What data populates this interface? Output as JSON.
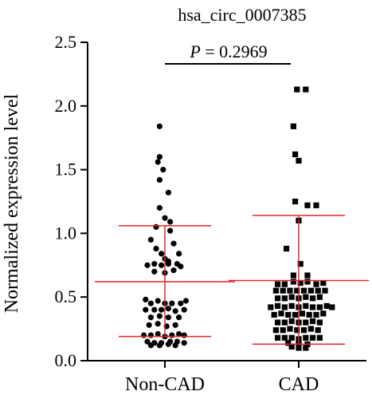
{
  "chart_data": {
    "type": "scatter",
    "title": "hsa_circ_0007385",
    "ylabel": "Normalized expression level",
    "xlabel": "",
    "ylim": [
      0,
      2.5
    ],
    "yticks": [
      "0.0",
      "0.5",
      "1.0",
      "1.5",
      "2.0",
      "2.5"
    ],
    "categories": [
      "Non-CAD",
      "CAD"
    ],
    "annotation": {
      "p_symbol": "P",
      "p_text": " = 0.2969"
    },
    "colors": {
      "points": "#000000",
      "summary_lines": "#e0262b",
      "axis": "#000000"
    },
    "series": [
      {
        "category": "Non-CAD",
        "marker": "circle",
        "mean": 0.62,
        "sd_upper": 1.06,
        "sd_lower": 0.19,
        "points": [
          [
            -0.03,
            1.84
          ],
          [
            -0.03,
            1.6
          ],
          [
            -0.04,
            1.56
          ],
          [
            -0.01,
            1.5
          ],
          [
            -0.03,
            1.42
          ],
          [
            0.02,
            1.32
          ],
          [
            -0.03,
            1.2
          ],
          [
            0.0,
            1.12
          ],
          [
            0.03,
            1.09
          ],
          [
            -0.05,
            1.05
          ],
          [
            0.03,
            1.02
          ],
          [
            -0.08,
            0.95
          ],
          [
            -0.05,
            0.88
          ],
          [
            0.05,
            0.92
          ],
          [
            -0.02,
            0.84
          ],
          [
            0.08,
            0.84
          ],
          [
            0.0,
            0.8
          ],
          [
            0.02,
            0.78
          ],
          [
            -0.1,
            0.75
          ],
          [
            -0.06,
            0.76
          ],
          [
            -0.02,
            0.75
          ],
          [
            0.02,
            0.76
          ],
          [
            0.07,
            0.76
          ],
          [
            0.09,
            0.74
          ],
          [
            -0.06,
            0.7
          ],
          [
            0.0,
            0.69
          ],
          [
            0.05,
            0.71
          ],
          [
            -0.11,
            0.48
          ],
          [
            -0.08,
            0.45
          ],
          [
            -0.04,
            0.47
          ],
          [
            0.0,
            0.45
          ],
          [
            0.04,
            0.45
          ],
          [
            0.09,
            0.45
          ],
          [
            0.12,
            0.47
          ],
          [
            -0.11,
            0.4
          ],
          [
            -0.06,
            0.4
          ],
          [
            -0.02,
            0.4
          ],
          [
            0.02,
            0.41
          ],
          [
            0.06,
            0.39
          ],
          [
            0.11,
            0.4
          ],
          [
            -0.08,
            0.34
          ],
          [
            -0.03,
            0.35
          ],
          [
            0.02,
            0.34
          ],
          [
            0.08,
            0.34
          ],
          [
            -0.09,
            0.28
          ],
          [
            -0.04,
            0.29
          ],
          [
            0.01,
            0.27
          ],
          [
            0.06,
            0.28
          ],
          [
            -0.12,
            0.2
          ],
          [
            -0.08,
            0.2
          ],
          [
            -0.04,
            0.21
          ],
          [
            0.0,
            0.19
          ],
          [
            0.04,
            0.2
          ],
          [
            0.08,
            0.21
          ],
          [
            0.11,
            0.2
          ],
          [
            -0.1,
            0.15
          ],
          [
            -0.06,
            0.14
          ],
          [
            -0.02,
            0.14
          ],
          [
            0.03,
            0.15
          ],
          [
            0.07,
            0.15
          ],
          [
            0.11,
            0.14
          ],
          [
            -0.08,
            0.12
          ],
          [
            -0.03,
            0.12
          ],
          [
            0.02,
            0.13
          ],
          [
            0.06,
            0.12
          ]
        ]
      },
      {
        "category": "CAD",
        "marker": "square",
        "mean": 0.63,
        "sd_upper": 1.14,
        "sd_lower": 0.13,
        "points": [
          [
            -0.01,
            2.13
          ],
          [
            0.04,
            2.13
          ],
          [
            -0.03,
            1.84
          ],
          [
            -0.02,
            1.62
          ],
          [
            0.0,
            1.57
          ],
          [
            -0.02,
            1.25
          ],
          [
            0.05,
            1.22
          ],
          [
            0.1,
            1.22
          ],
          [
            0.0,
            1.1
          ],
          [
            -0.07,
            0.88
          ],
          [
            0.01,
            0.76
          ],
          [
            -0.03,
            0.67
          ],
          [
            0.05,
            0.67
          ],
          [
            -0.12,
            0.6
          ],
          [
            -0.08,
            0.6
          ],
          [
            -0.03,
            0.62
          ],
          [
            0.01,
            0.61
          ],
          [
            0.05,
            0.62
          ],
          [
            0.1,
            0.6
          ],
          [
            0.14,
            0.61
          ],
          [
            -0.13,
            0.55
          ],
          [
            -0.09,
            0.55
          ],
          [
            -0.05,
            0.55
          ],
          [
            -0.01,
            0.55
          ],
          [
            0.03,
            0.55
          ],
          [
            0.07,
            0.55
          ],
          [
            0.11,
            0.55
          ],
          [
            0.15,
            0.55
          ],
          [
            -0.12,
            0.49
          ],
          [
            -0.08,
            0.49
          ],
          [
            -0.04,
            0.5
          ],
          [
            0.0,
            0.49
          ],
          [
            0.04,
            0.5
          ],
          [
            0.08,
            0.49
          ],
          [
            0.12,
            0.5
          ],
          [
            -0.16,
            0.42
          ],
          [
            -0.12,
            0.43
          ],
          [
            -0.08,
            0.42
          ],
          [
            -0.04,
            0.43
          ],
          [
            0.0,
            0.42
          ],
          [
            0.04,
            0.43
          ],
          [
            0.08,
            0.42
          ],
          [
            0.12,
            0.42
          ],
          [
            0.16,
            0.43
          ],
          [
            0.19,
            0.42
          ],
          [
            -0.14,
            0.36
          ],
          [
            -0.1,
            0.37
          ],
          [
            -0.06,
            0.36
          ],
          [
            -0.02,
            0.36
          ],
          [
            0.02,
            0.37
          ],
          [
            0.06,
            0.36
          ],
          [
            0.1,
            0.36
          ],
          [
            0.14,
            0.37
          ],
          [
            -0.12,
            0.3
          ],
          [
            -0.08,
            0.3
          ],
          [
            -0.04,
            0.31
          ],
          [
            0.0,
            0.3
          ],
          [
            0.04,
            0.3
          ],
          [
            0.08,
            0.31
          ],
          [
            0.12,
            0.3
          ],
          [
            -0.13,
            0.24
          ],
          [
            -0.09,
            0.24
          ],
          [
            -0.05,
            0.25
          ],
          [
            -0.01,
            0.24
          ],
          [
            0.03,
            0.24
          ],
          [
            0.07,
            0.25
          ],
          [
            0.11,
            0.24
          ],
          [
            -0.12,
            0.18
          ],
          [
            -0.08,
            0.18
          ],
          [
            -0.04,
            0.18
          ],
          [
            0.0,
            0.17
          ],
          [
            0.04,
            0.18
          ],
          [
            0.08,
            0.18
          ],
          [
            0.12,
            0.18
          ],
          [
            -0.06,
            0.14
          ],
          [
            0.0,
            0.13
          ],
          [
            0.05,
            0.13
          ],
          [
            -0.04,
            0.11
          ],
          [
            0.0,
            0.1
          ],
          [
            0.04,
            0.1
          ]
        ]
      }
    ]
  }
}
